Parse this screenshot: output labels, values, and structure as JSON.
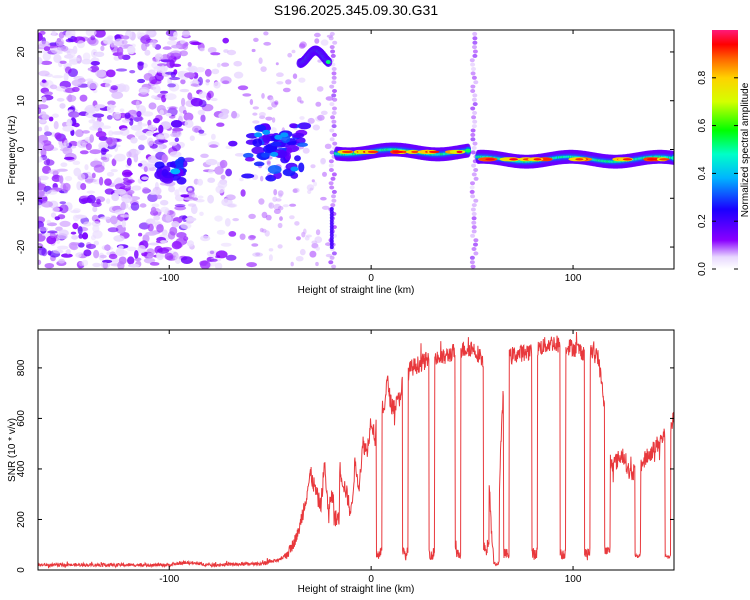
{
  "title": "S196.2025.345.09.30.G31",
  "chart_data": [
    {
      "type": "heatmap",
      "xlabel": "Height of straight line (km)",
      "ylabel": "Frequency (Hz)",
      "xlim": [
        -165,
        150
      ],
      "ylim": [
        -24.5,
        24.5
      ],
      "xticks": [
        -100,
        0,
        100
      ],
      "yticks": [
        -20,
        -10,
        0,
        10,
        20
      ],
      "colorbar": {
        "label": "Normalized spectral amplitude",
        "range": [
          0,
          1
        ],
        "ticks": [
          0.0,
          0.2,
          0.4,
          0.6,
          0.8
        ]
      },
      "features": [
        {
          "name": "noise-field",
          "x_range": [
            -165,
            -55
          ],
          "y_range": [
            -24,
            24
          ],
          "amplitude": 0.12
        },
        {
          "name": "blob-minus-100",
          "x_range": [
            -105,
            -92
          ],
          "y_range": [
            -7,
            -2
          ],
          "amplitude": 0.28
        },
        {
          "name": "cluster-minus-50",
          "x_range": [
            -62,
            -33
          ],
          "y_range": [
            -6,
            5
          ],
          "amplitude": 0.3
        },
        {
          "name": "high-band-20hz",
          "x_range": [
            -35,
            -21
          ],
          "y_range": [
            16,
            21
          ],
          "amplitude": 0.45
        },
        {
          "name": "vertical-stripe-minus-20",
          "x_range": [
            -21,
            -17
          ],
          "y_range": [
            -24,
            24
          ],
          "amplitude": 0.1
        },
        {
          "name": "signal-band-1",
          "x_range": [
            -17,
            48
          ],
          "y_range": [
            -2,
            1
          ],
          "amplitude": 0.9
        },
        {
          "name": "vertical-stripe-50",
          "x_range": [
            49,
            53
          ],
          "y_range": [
            -24,
            24
          ],
          "amplitude": 0.1
        },
        {
          "name": "signal-band-2",
          "x_range": [
            53,
            150
          ],
          "y_range": [
            -3,
            0
          ],
          "amplitude": 0.85
        }
      ]
    },
    {
      "type": "line",
      "xlabel": "Height of straight line (km)",
      "ylabel": "SNR (10 * v/v)",
      "xlim": [
        -165,
        150
      ],
      "ylim": [
        0,
        950
      ],
      "xticks": [
        -100,
        0,
        100
      ],
      "yticks": [
        0,
        200,
        400,
        600,
        800
      ],
      "color": "#e8383c",
      "keypoints": [
        [
          -165,
          20
        ],
        [
          -100,
          20
        ],
        [
          -92,
          30
        ],
        [
          -80,
          20
        ],
        [
          -55,
          25
        ],
        [
          -45,
          40
        ],
        [
          -40,
          80
        ],
        [
          -36,
          150
        ],
        [
          -33,
          260
        ],
        [
          -30,
          380
        ],
        [
          -27,
          300
        ],
        [
          -25,
          250
        ],
        [
          -23,
          420
        ],
        [
          -21,
          200
        ],
        [
          -20,
          300
        ],
        [
          -18,
          260
        ],
        [
          -16,
          420
        ],
        [
          -14,
          350
        ],
        [
          -12,
          300
        ],
        [
          -10,
          220
        ],
        [
          -8,
          420
        ],
        [
          -6,
          340
        ],
        [
          -4,
          500
        ],
        [
          -2,
          470
        ],
        [
          0,
          600
        ],
        [
          2,
          520
        ],
        [
          4,
          700
        ],
        [
          6,
          620
        ],
        [
          8,
          750
        ],
        [
          10,
          650
        ],
        [
          12,
          650
        ],
        [
          14,
          680
        ],
        [
          16,
          760
        ],
        [
          20,
          800
        ],
        [
          30,
          840
        ],
        [
          36,
          840
        ],
        [
          40,
          860
        ],
        [
          44,
          870
        ],
        [
          50,
          880
        ],
        [
          55,
          840
        ],
        [
          57,
          620
        ],
        [
          60,
          80
        ],
        [
          62,
          40
        ],
        [
          66,
          820
        ],
        [
          70,
          850
        ],
        [
          80,
          870
        ],
        [
          90,
          900
        ],
        [
          95,
          890
        ],
        [
          100,
          880
        ],
        [
          106,
          860
        ],
        [
          112,
          860
        ],
        [
          115,
          700
        ],
        [
          117,
          440
        ],
        [
          120,
          420
        ],
        [
          125,
          460
        ],
        [
          128,
          380
        ],
        [
          132,
          400
        ],
        [
          136,
          440
        ],
        [
          140,
          480
        ],
        [
          144,
          520
        ],
        [
          148,
          560
        ],
        [
          150,
          600
        ]
      ],
      "dips": [
        [
          -17,
          200
        ],
        [
          4,
          60
        ],
        [
          17,
          60
        ],
        [
          30,
          60
        ],
        [
          43,
          60
        ],
        [
          57,
          80
        ],
        [
          62,
          20
        ],
        [
          67,
          60
        ],
        [
          81,
          60
        ],
        [
          95,
          60
        ],
        [
          107,
          60
        ],
        [
          117,
          70
        ],
        [
          132,
          50
        ],
        [
          147,
          50
        ]
      ]
    }
  ],
  "colors": {
    "line": "#e8383c",
    "axis": "#000000",
    "background": "#ffffff"
  }
}
